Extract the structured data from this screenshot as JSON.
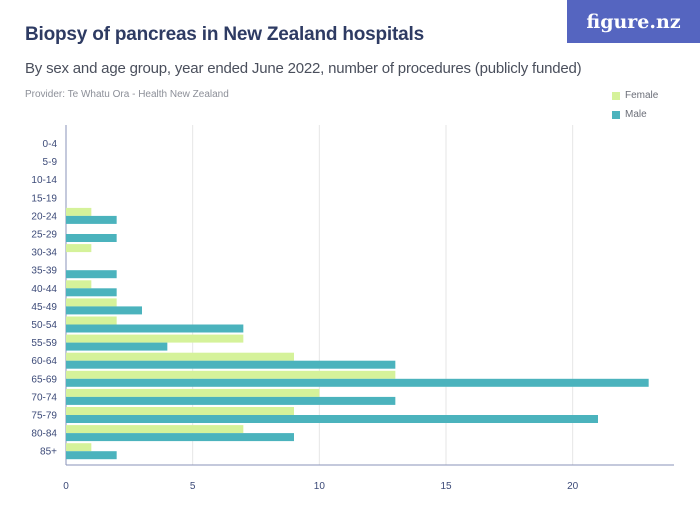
{
  "header": {
    "title": "Biopsy of pancreas in New Zealand hospitals",
    "subtitle": "By sex and age group, year ended June 2022, number of procedures (publicly funded)",
    "provider": "Provider: Te Whatu Ora - Health New Zealand",
    "logo_text": "figure.nz"
  },
  "colors": {
    "female": "#d5f29a",
    "male": "#4bb3bd",
    "logo_bg": "#5565c0",
    "grid": "#e6e6e6"
  },
  "chart_data": {
    "type": "bar",
    "orientation": "horizontal",
    "categories": [
      "0-4",
      "5-9",
      "10-14",
      "15-19",
      "20-24",
      "25-29",
      "30-34",
      "35-39",
      "40-44",
      "45-49",
      "50-54",
      "55-59",
      "60-64",
      "65-69",
      "70-74",
      "75-79",
      "80-84",
      "85+"
    ],
    "series": [
      {
        "name": "Female",
        "values": [
          0,
          0,
          0,
          0,
          1,
          0,
          1,
          0,
          1,
          2,
          2,
          7,
          9,
          13,
          10,
          9,
          7,
          1
        ]
      },
      {
        "name": "Male",
        "values": [
          0,
          0,
          0,
          0,
          2,
          2,
          0,
          2,
          2,
          3,
          7,
          4,
          13,
          23,
          13,
          21,
          9,
          2
        ]
      }
    ],
    "xticks": [
      0,
      5,
      10,
      15,
      20
    ],
    "xlim": [
      0,
      24
    ],
    "grid": true,
    "legend": "top-right"
  }
}
